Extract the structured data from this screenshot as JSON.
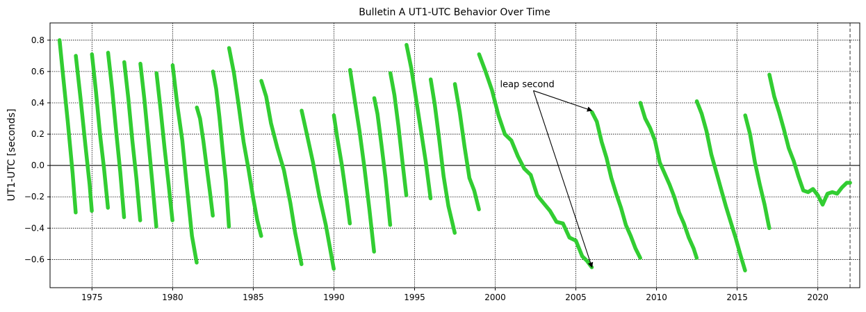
{
  "chart_data": {
    "type": "line",
    "title": "Bulletin A UT1-UTC Behavior Over Time",
    "xlabel": "",
    "ylabel": "UT1-UTC [seconds]",
    "xlim": [
      1972.4,
      2022.6
    ],
    "ylim": [
      -0.78,
      0.91
    ],
    "x_ticks": [
      1975,
      1980,
      1985,
      1990,
      1995,
      2000,
      2005,
      2010,
      2015,
      2020
    ],
    "y_ticks": [
      -0.6,
      -0.4,
      -0.2,
      0.0,
      0.2,
      0.4,
      0.6,
      0.8
    ],
    "y_tick_labels": [
      "−0.6",
      "−0.4",
      "−0.2",
      "0.0",
      "0.2",
      "0.4",
      "0.6",
      "0.8"
    ],
    "grid": true,
    "zero_line": 0.0,
    "vertical_dashed_line_x": 2022.0,
    "series_color": "#32cd32",
    "annotation": {
      "text": "leap second",
      "text_at": [
        2000.3,
        0.5
      ],
      "arrow_targets": [
        [
          2006.0,
          0.35
        ],
        [
          2006.0,
          -0.65
        ]
      ]
    },
    "segments": [
      {
        "points": [
          [
            1972.99,
            0.8
          ],
          [
            1973.2,
            0.58
          ],
          [
            1973.5,
            0.28
          ],
          [
            1973.8,
            -0.05
          ],
          [
            1973.99,
            -0.3
          ]
        ]
      },
      {
        "points": [
          [
            1974.0,
            0.7
          ],
          [
            1974.3,
            0.42
          ],
          [
            1974.6,
            0.12
          ],
          [
            1974.85,
            -0.12
          ],
          [
            1974.99,
            -0.29
          ]
        ]
      },
      {
        "points": [
          [
            1975.0,
            0.71
          ],
          [
            1975.25,
            0.47
          ],
          [
            1975.5,
            0.2
          ],
          [
            1975.75,
            -0.02
          ],
          [
            1975.99,
            -0.27
          ]
        ]
      },
      {
        "points": [
          [
            1976.0,
            0.72
          ],
          [
            1976.25,
            0.49
          ],
          [
            1976.5,
            0.22
          ],
          [
            1976.75,
            -0.04
          ],
          [
            1976.99,
            -0.33
          ]
        ]
      },
      {
        "points": [
          [
            1977.0,
            0.66
          ],
          [
            1977.25,
            0.43
          ],
          [
            1977.5,
            0.16
          ],
          [
            1977.75,
            -0.08
          ],
          [
            1977.99,
            -0.35
          ]
        ]
      },
      {
        "points": [
          [
            1978.0,
            0.65
          ],
          [
            1978.25,
            0.42
          ],
          [
            1978.5,
            0.15
          ],
          [
            1978.75,
            -0.12
          ],
          [
            1978.99,
            -0.39
          ]
        ]
      },
      {
        "points": [
          [
            1979.0,
            0.59
          ],
          [
            1979.25,
            0.36
          ],
          [
            1979.5,
            0.11
          ],
          [
            1979.75,
            -0.12
          ],
          [
            1979.99,
            -0.35
          ]
        ]
      },
      {
        "points": [
          [
            1980.0,
            0.64
          ],
          [
            1980.3,
            0.38
          ],
          [
            1980.6,
            0.16
          ],
          [
            1980.85,
            -0.1
          ],
          [
            1981.0,
            -0.25
          ],
          [
            1981.2,
            -0.45
          ],
          [
            1981.49,
            -0.62
          ]
        ]
      },
      {
        "points": [
          [
            1981.5,
            0.37
          ],
          [
            1981.7,
            0.3
          ],
          [
            1981.9,
            0.16
          ],
          [
            1982.1,
            0.0
          ],
          [
            1982.3,
            -0.16
          ],
          [
            1982.49,
            -0.32
          ]
        ]
      },
      {
        "points": [
          [
            1982.5,
            0.6
          ],
          [
            1982.7,
            0.49
          ],
          [
            1982.9,
            0.31
          ],
          [
            1983.1,
            0.1
          ],
          [
            1983.3,
            -0.1
          ],
          [
            1983.49,
            -0.39
          ]
        ]
      },
      {
        "points": [
          [
            1983.5,
            0.75
          ],
          [
            1983.8,
            0.59
          ],
          [
            1984.1,
            0.38
          ],
          [
            1984.4,
            0.15
          ],
          [
            1984.7,
            -0.02
          ],
          [
            1985.0,
            -0.21
          ],
          [
            1985.25,
            -0.35
          ],
          [
            1985.49,
            -0.45
          ]
        ]
      },
      {
        "points": [
          [
            1985.5,
            0.54
          ],
          [
            1985.8,
            0.44
          ],
          [
            1986.1,
            0.27
          ],
          [
            1986.5,
            0.11
          ],
          [
            1986.9,
            -0.03
          ],
          [
            1987.3,
            -0.24
          ],
          [
            1987.6,
            -0.43
          ],
          [
            1987.99,
            -0.63
          ]
        ]
      },
      {
        "points": [
          [
            1988.0,
            0.35
          ],
          [
            1988.3,
            0.21
          ],
          [
            1988.7,
            0.02
          ],
          [
            1989.1,
            -0.2
          ],
          [
            1989.5,
            -0.38
          ],
          [
            1989.99,
            -0.66
          ]
        ]
      },
      {
        "points": [
          [
            1990.0,
            0.32
          ],
          [
            1990.2,
            0.18
          ],
          [
            1990.5,
            0.0
          ],
          [
            1990.8,
            -0.22
          ],
          [
            1990.99,
            -0.37
          ]
        ]
      },
      {
        "points": [
          [
            1991.0,
            0.61
          ],
          [
            1991.3,
            0.41
          ],
          [
            1991.6,
            0.21
          ],
          [
            1991.9,
            -0.02
          ],
          [
            1992.2,
            -0.28
          ],
          [
            1992.49,
            -0.55
          ]
        ]
      },
      {
        "points": [
          [
            1992.5,
            0.43
          ],
          [
            1992.7,
            0.33
          ],
          [
            1992.95,
            0.13
          ],
          [
            1993.2,
            -0.08
          ],
          [
            1993.49,
            -0.38
          ]
        ]
      },
      {
        "points": [
          [
            1993.5,
            0.59
          ],
          [
            1993.75,
            0.45
          ],
          [
            1994.0,
            0.25
          ],
          [
            1994.25,
            0.02
          ],
          [
            1994.49,
            -0.19
          ]
        ]
      },
      {
        "points": [
          [
            1994.5,
            0.77
          ],
          [
            1994.8,
            0.62
          ],
          [
            1995.1,
            0.42
          ],
          [
            1995.4,
            0.22
          ],
          [
            1995.7,
            0.02
          ],
          [
            1995.99,
            -0.21
          ]
        ]
      },
      {
        "points": [
          [
            1996.0,
            0.55
          ],
          [
            1996.25,
            0.39
          ],
          [
            1996.5,
            0.19
          ],
          [
            1996.8,
            -0.07
          ],
          [
            1997.1,
            -0.26
          ],
          [
            1997.49,
            -0.43
          ]
        ]
      },
      {
        "points": [
          [
            1997.5,
            0.52
          ],
          [
            1997.8,
            0.34
          ],
          [
            1998.1,
            0.12
          ],
          [
            1998.4,
            -0.08
          ],
          [
            1998.7,
            -0.16
          ],
          [
            1998.99,
            -0.28
          ]
        ]
      },
      {
        "points": [
          [
            1999.0,
            0.71
          ],
          [
            1999.4,
            0.6
          ],
          [
            1999.8,
            0.48
          ],
          [
            2000.2,
            0.32
          ],
          [
            2000.6,
            0.2
          ],
          [
            2001.0,
            0.16
          ],
          [
            2001.4,
            0.06
          ],
          [
            2001.8,
            -0.02
          ],
          [
            2002.2,
            -0.06
          ],
          [
            2002.6,
            -0.19
          ],
          [
            2003.0,
            -0.24
          ],
          [
            2003.4,
            -0.29
          ],
          [
            2003.8,
            -0.36
          ],
          [
            2004.2,
            -0.37
          ],
          [
            2004.6,
            -0.46
          ],
          [
            2005.0,
            -0.48
          ],
          [
            2005.4,
            -0.58
          ],
          [
            2005.7,
            -0.61
          ],
          [
            2005.99,
            -0.65
          ]
        ]
      },
      {
        "points": [
          [
            2006.0,
            0.34
          ],
          [
            2006.3,
            0.28
          ],
          [
            2006.6,
            0.15
          ],
          [
            2006.9,
            0.05
          ],
          [
            2007.2,
            -0.08
          ],
          [
            2007.5,
            -0.18
          ],
          [
            2007.8,
            -0.27
          ],
          [
            2008.1,
            -0.38
          ],
          [
            2008.4,
            -0.45
          ],
          [
            2008.7,
            -0.53
          ],
          [
            2008.99,
            -0.59
          ]
        ]
      },
      {
        "points": [
          [
            2009.0,
            0.4
          ],
          [
            2009.3,
            0.3
          ],
          [
            2009.6,
            0.24
          ],
          [
            2009.9,
            0.16
          ],
          [
            2010.2,
            0.02
          ],
          [
            2010.5,
            -0.05
          ],
          [
            2010.8,
            -0.12
          ],
          [
            2011.1,
            -0.2
          ],
          [
            2011.4,
            -0.3
          ],
          [
            2011.7,
            -0.37
          ],
          [
            2012.0,
            -0.46
          ],
          [
            2012.3,
            -0.53
          ],
          [
            2012.49,
            -0.59
          ]
        ]
      },
      {
        "points": [
          [
            2012.5,
            0.41
          ],
          [
            2012.8,
            0.33
          ],
          [
            2013.1,
            0.22
          ],
          [
            2013.4,
            0.07
          ],
          [
            2013.7,
            -0.04
          ],
          [
            2014.0,
            -0.15
          ],
          [
            2014.3,
            -0.26
          ],
          [
            2014.6,
            -0.36
          ],
          [
            2014.9,
            -0.46
          ],
          [
            2015.2,
            -0.57
          ],
          [
            2015.49,
            -0.67
          ]
        ]
      },
      {
        "points": [
          [
            2015.5,
            0.32
          ],
          [
            2015.8,
            0.2
          ],
          [
            2016.1,
            0.02
          ],
          [
            2016.4,
            -0.12
          ],
          [
            2016.7,
            -0.25
          ],
          [
            2016.99,
            -0.4
          ]
        ]
      },
      {
        "points": [
          [
            2017.0,
            0.58
          ],
          [
            2017.3,
            0.44
          ],
          [
            2017.6,
            0.34
          ],
          [
            2017.9,
            0.23
          ],
          [
            2018.2,
            0.11
          ],
          [
            2018.5,
            0.03
          ],
          [
            2018.8,
            -0.07
          ],
          [
            2019.1,
            -0.16
          ],
          [
            2019.4,
            -0.17
          ],
          [
            2019.7,
            -0.15
          ],
          [
            2020.0,
            -0.19
          ],
          [
            2020.3,
            -0.25
          ],
          [
            2020.6,
            -0.18
          ],
          [
            2020.9,
            -0.17
          ],
          [
            2021.2,
            -0.18
          ],
          [
            2021.5,
            -0.14
          ],
          [
            2021.8,
            -0.11
          ],
          [
            2022.0,
            -0.11
          ]
        ]
      }
    ]
  }
}
